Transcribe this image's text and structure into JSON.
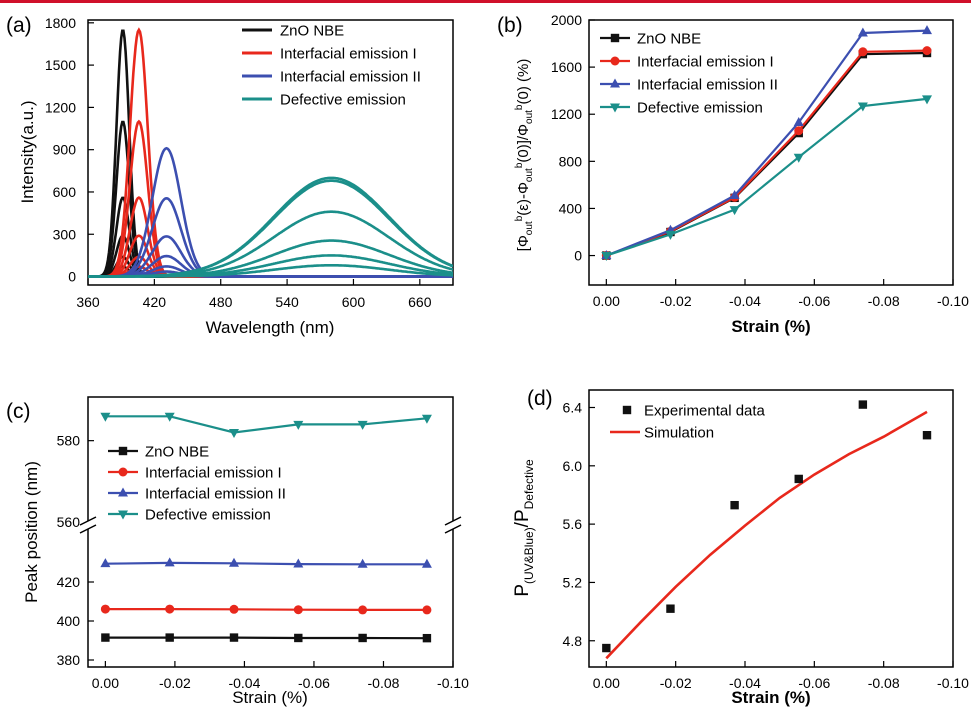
{
  "colors": {
    "black": "#111111",
    "red": "#e8281c",
    "blue": "#3c4fb0",
    "teal": "#1b8f8a",
    "bar": "#d0102a"
  },
  "chart_data": [
    {
      "panel": "(a)",
      "type": "line",
      "xlabel": "Wavelength (nm)",
      "ylabel": "Intensity(a.u.)",
      "xlim": [
        360,
        690
      ],
      "ylim": [
        -60,
        1820
      ],
      "xticks": [
        360,
        420,
        480,
        540,
        600,
        660
      ],
      "yticks": [
        0,
        300,
        600,
        900,
        1200,
        1500,
        1800
      ],
      "legend_position": "top-right",
      "series": [
        {
          "name": "ZnO NBE",
          "color_key": "black",
          "center": 391.5,
          "sigma": 5.8,
          "peaks": [
            1750,
            1100,
            560,
            290,
            140,
            70
          ]
        },
        {
          "name": "Interfacial emission I",
          "color_key": "red",
          "center": 406,
          "sigma": 8,
          "peaks": [
            1750,
            1100,
            560,
            290,
            140,
            70
          ]
        },
        {
          "name": "Interfacial emission II",
          "color_key": "blue",
          "center": 431,
          "sigma": 13,
          "peaks": [
            910,
            555,
            285,
            145,
            72,
            35
          ]
        },
        {
          "name": "Defective emission",
          "color_key": "teal",
          "center": 580,
          "sigma": 52,
          "peaks": [
            700,
            680,
            460,
            255,
            150,
            80
          ]
        }
      ]
    },
    {
      "panel": "(b)",
      "type": "line",
      "xlabel": "Strain (%)",
      "ylabel": "[Φbout(ε)-Φbout(0)]/Φbout(0) (%)",
      "xlim": [
        0.005,
        -0.1
      ],
      "ylim": [
        -250,
        2000
      ],
      "xticks": [
        "0.00",
        "-0.02",
        "-0.04",
        "-0.06",
        "-0.08",
        "-0.10"
      ],
      "yticks": [
        0,
        400,
        800,
        1200,
        1600,
        2000
      ],
      "legend_position": "top-left",
      "x": [
        0,
        -0.0185,
        -0.037,
        -0.0555,
        -0.074,
        -0.0925
      ],
      "series": [
        {
          "name": "ZnO NBE",
          "color_key": "black",
          "marker": "square",
          "values": [
            0,
            200,
            490,
            1040,
            1710,
            1720
          ]
        },
        {
          "name": "Interfacial emission I",
          "color_key": "red",
          "marker": "circle",
          "values": [
            0,
            205,
            495,
            1060,
            1730,
            1740
          ]
        },
        {
          "name": "Interfacial emission II",
          "color_key": "blue",
          "marker": "triangle-up",
          "values": [
            0,
            215,
            510,
            1130,
            1890,
            1910
          ]
        },
        {
          "name": "Defective emission",
          "color_key": "teal",
          "marker": "triangle-down",
          "values": [
            0,
            180,
            390,
            835,
            1270,
            1330
          ]
        }
      ]
    },
    {
      "panel": "(c)",
      "type": "line",
      "xlabel": "Strain (%)",
      "ylabel": "Peak position (nm)",
      "xlim": [
        0.005,
        -0.1
      ],
      "broken_axis": true,
      "lower_ylim": [
        380,
        440
      ],
      "upper_ylim": [
        560,
        590
      ],
      "lower_yticks": [
        380,
        400,
        420
      ],
      "upper_yticks": [
        560,
        580
      ],
      "xticks": [
        "0.00",
        "-0.02",
        "-0.04",
        "-0.06",
        "-0.08",
        "-0.10"
      ],
      "legend_position": "center",
      "x": [
        0,
        -0.0185,
        -0.037,
        -0.0555,
        -0.074,
        -0.0925
      ],
      "series": [
        {
          "name": "ZnO NBE",
          "color_key": "black",
          "marker": "square",
          "values": [
            391.5,
            391.5,
            391.5,
            391.3,
            391.3,
            391.2
          ]
        },
        {
          "name": "Interfacial emission I",
          "color_key": "red",
          "marker": "circle",
          "values": [
            406.1,
            406.1,
            406.0,
            405.8,
            405.7,
            405.7
          ]
        },
        {
          "name": "Interfacial emission II",
          "color_key": "blue",
          "marker": "triangle-up",
          "values": [
            429.4,
            429.8,
            429.6,
            429.2,
            429.1,
            429.1
          ]
        },
        {
          "name": "Defective emission",
          "color_key": "teal",
          "marker": "triangle-down",
          "values": [
            586,
            586,
            582,
            584,
            584,
            585.5
          ]
        }
      ]
    },
    {
      "panel": "(d)",
      "type": "scatter",
      "xlabel": "Strain (%)",
      "ylabel_main": "P",
      "ylabel_sub1": "(UV&Blue)",
      "ylabel_mid": "/P",
      "ylabel_sub2": "Defective",
      "xlim": [
        0.005,
        -0.1
      ],
      "ylim": [
        4.62,
        6.52
      ],
      "xticks": [
        "0.00",
        "-0.02",
        "-0.04",
        "-0.06",
        "-0.08",
        "-0.10"
      ],
      "yticks": [
        "4.8",
        "5.2",
        "5.6",
        "6.0",
        "6.4"
      ],
      "legend_position": "top-left",
      "series": [
        {
          "name": "Experimental data",
          "color_key": "black",
          "marker": "square",
          "x": [
            0,
            -0.0185,
            -0.037,
            -0.0555,
            -0.074,
            -0.0925
          ],
          "values": [
            4.75,
            5.02,
            5.73,
            5.91,
            6.42,
            6.21
          ]
        },
        {
          "name": "Simulation",
          "color_key": "red",
          "marker": "line",
          "x": [
            0,
            -0.01,
            -0.02,
            -0.03,
            -0.04,
            -0.05,
            -0.06,
            -0.07,
            -0.08,
            -0.0925
          ],
          "values": [
            4.68,
            4.93,
            5.17,
            5.39,
            5.59,
            5.78,
            5.94,
            6.08,
            6.2,
            6.37
          ]
        }
      ]
    }
  ]
}
